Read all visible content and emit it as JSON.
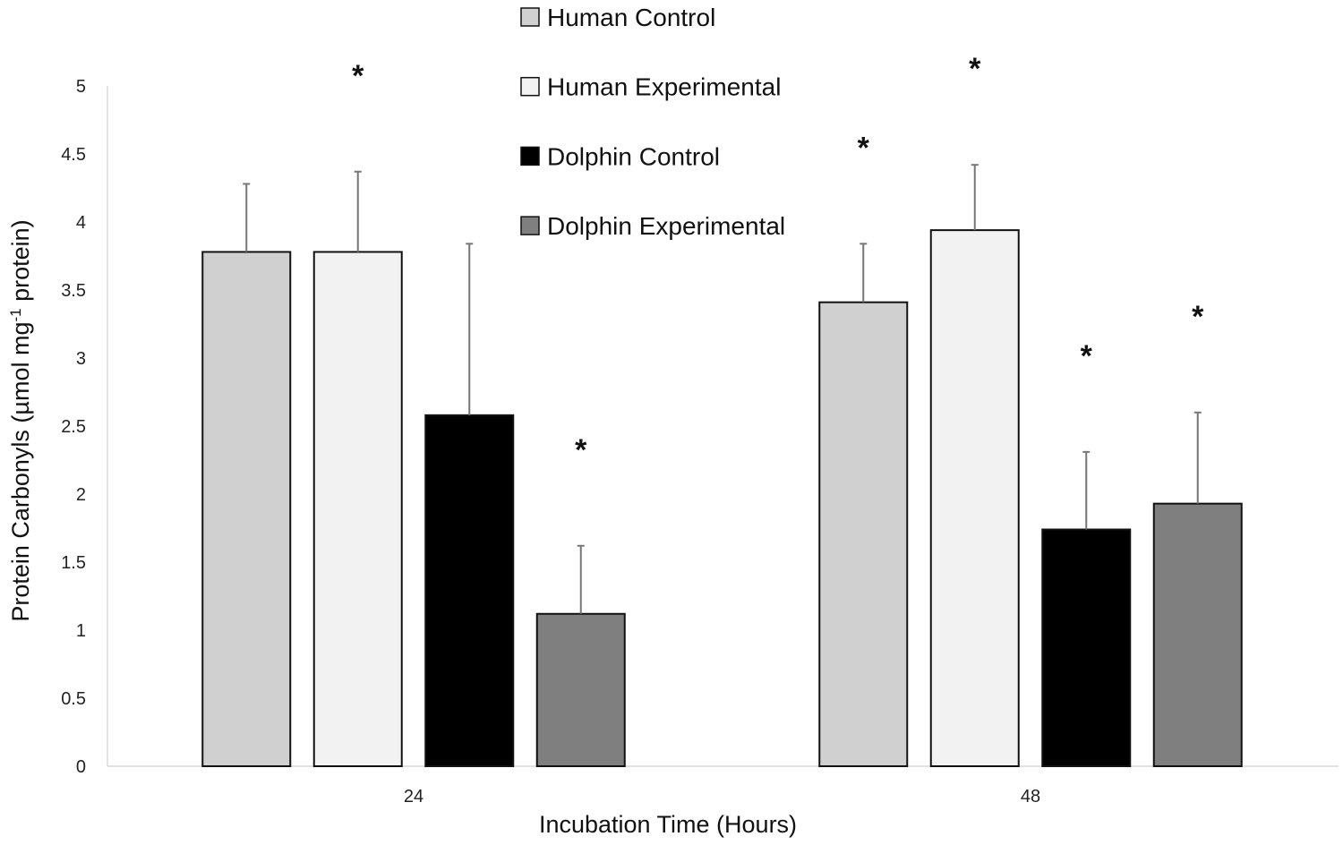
{
  "chart_data": {
    "type": "bar",
    "title": "",
    "xlabel": "Incubation Time (Hours)",
    "ylabel_parts": [
      "Protein Carbonyls (µmol mg",
      "-1",
      " protein)"
    ],
    "ylim": [
      0,
      5
    ],
    "yticks": [
      "0",
      "0.5",
      "1",
      "1.5",
      "2",
      "2.5",
      "3",
      "3.5",
      "4",
      "4.5",
      "5"
    ],
    "categories": [
      "24",
      "48"
    ],
    "series": [
      {
        "name": "Human Control",
        "color": "#d0d0d0",
        "values": [
          3.78,
          3.41
        ],
        "errors": [
          0.5,
          0.43
        ],
        "significant": [
          false,
          true
        ]
      },
      {
        "name": "Human Experimental",
        "color": "#f2f2f2",
        "values": [
          3.78,
          3.94
        ],
        "errors": [
          0.59,
          0.48
        ],
        "significant": [
          true,
          true
        ]
      },
      {
        "name": "Dolphin Control",
        "color": "#000000",
        "values": [
          2.58,
          1.74
        ],
        "errors": [
          1.26,
          0.57
        ],
        "significant": [
          false,
          true
        ]
      },
      {
        "name": "Dolphin Experimental",
        "color": "#7f7f7f",
        "values": [
          1.12,
          1.93
        ],
        "errors": [
          0.5,
          0.67
        ],
        "significant": [
          true,
          true
        ]
      }
    ],
    "significance_marker": "*",
    "legend_position": "top-center"
  }
}
